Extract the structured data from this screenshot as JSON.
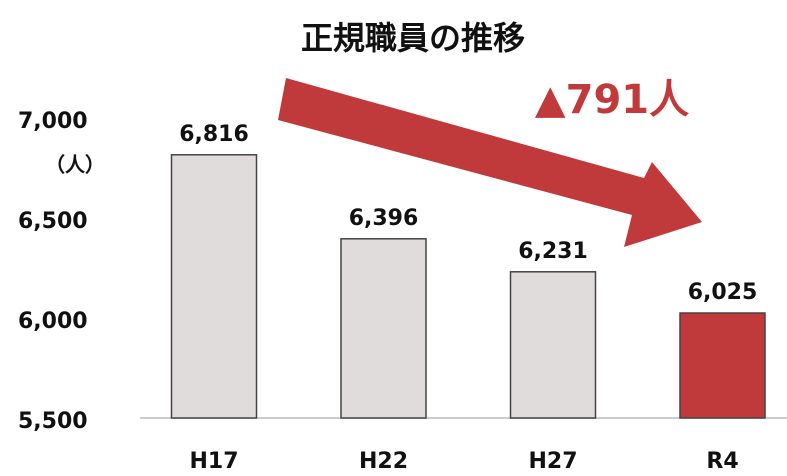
{
  "chart_data": {
    "type": "bar",
    "title": "正規職員の推移",
    "y_unit_label": "（人）",
    "annotation": "▲791人",
    "categories": [
      "H17",
      "H22",
      "H27",
      "R4"
    ],
    "values": [
      6816,
      6396,
      6231,
      6025
    ],
    "value_labels": [
      "6,816",
      "6,396",
      "6,231",
      "6,025"
    ],
    "colors": [
      "#e0dcdc",
      "#e0dcdc",
      "#e0dcdc",
      "#c0393b"
    ],
    "annotation_color": "#c0393b",
    "ylim": [
      5500,
      7000
    ],
    "yticks": [
      {
        "value": 5500,
        "label": "5,500"
      },
      {
        "value": 6000,
        "label": "6,000"
      },
      {
        "value": 6500,
        "label": "6,500"
      },
      {
        "value": 7000,
        "label": "7,000"
      }
    ],
    "grid": false
  }
}
